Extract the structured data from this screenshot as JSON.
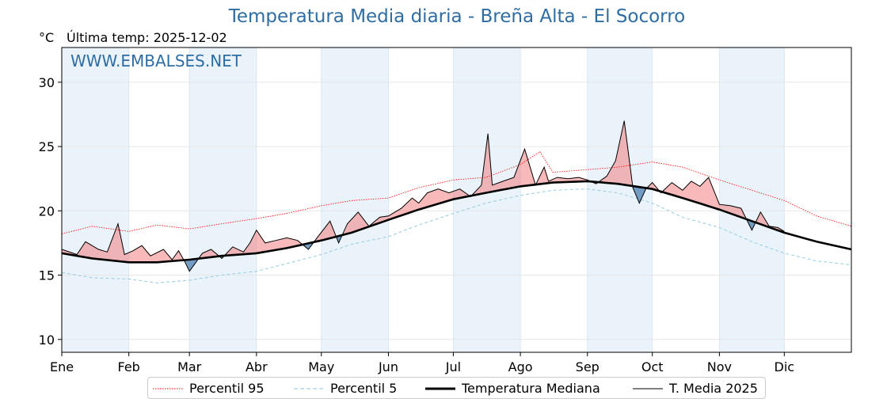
{
  "title": "Temperatura Media diaria - Breña Alta - El Socorro",
  "unit": "°C",
  "last_temp_text": "Última temp: 2025-12-02",
  "watermark": "WWW.EMBALSES.NET",
  "colors": {
    "p95": "#ff0000",
    "p5": "#9fd0e0",
    "median": "#000000",
    "current": "#000000",
    "fill_above": "#f08080",
    "fill_below": "#4a7fb0",
    "band": "#eaf2fa",
    "title": "#2e6da4"
  },
  "legend": [
    {
      "label": "Percentil 95",
      "style": "dotted-red"
    },
    {
      "label": "Percentil 5",
      "style": "dashed-lightblue"
    },
    {
      "label": "Temperatura Mediana",
      "style": "thick-black"
    },
    {
      "label": "T. Media 2025",
      "style": "thin-black"
    }
  ],
  "chart_data": {
    "type": "line",
    "title": "Temperatura Media diaria - Breña Alta - El Socorro",
    "ylabel": "°C",
    "ylim": [
      9,
      32.7
    ],
    "xlim": [
      1,
      366
    ],
    "yticks": [
      10,
      15,
      20,
      25,
      30
    ],
    "x_ticks": [
      {
        "label": "Ene",
        "day": 1
      },
      {
        "label": "Feb",
        "day": 32
      },
      {
        "label": "Mar",
        "day": 60
      },
      {
        "label": "Abr",
        "day": 91
      },
      {
        "label": "May",
        "day": 121
      },
      {
        "label": "Jun",
        "day": 152
      },
      {
        "label": "Jul",
        "day": 182
      },
      {
        "label": "Ago",
        "day": 213
      },
      {
        "label": "Sep",
        "day": 244
      },
      {
        "label": "Oct",
        "day": 274
      },
      {
        "label": "Nov",
        "day": 305
      },
      {
        "label": "Dic",
        "day": 335
      }
    ],
    "shaded_months": [
      "Ene",
      "Mar",
      "May",
      "Jul",
      "Sep",
      "Nov"
    ],
    "grid": true,
    "legend_position": "bottom",
    "series": [
      {
        "name": "Percentil 95",
        "x": [
          1,
          15,
          32,
          45,
          60,
          75,
          91,
          105,
          121,
          135,
          152,
          166,
          182,
          197,
          213,
          222,
          228,
          244,
          258,
          274,
          288,
          305,
          320,
          335,
          350,
          366
        ],
        "y": [
          18.2,
          18.8,
          18.4,
          18.9,
          18.6,
          19.0,
          19.4,
          19.8,
          20.4,
          20.8,
          21.0,
          21.8,
          22.4,
          22.6,
          23.6,
          24.6,
          23.0,
          23.2,
          23.4,
          23.8,
          23.4,
          22.4,
          21.6,
          20.8,
          19.6,
          18.8
        ]
      },
      {
        "name": "Percentil 5",
        "x": [
          1,
          15,
          32,
          45,
          60,
          75,
          91,
          105,
          121,
          135,
          152,
          166,
          182,
          197,
          213,
          228,
          244,
          258,
          274,
          288,
          305,
          320,
          335,
          350,
          366
        ],
        "y": [
          15.2,
          14.8,
          14.7,
          14.4,
          14.6,
          15.0,
          15.3,
          15.9,
          16.6,
          17.4,
          18.0,
          18.9,
          19.8,
          20.6,
          21.2,
          21.6,
          21.7,
          21.4,
          20.6,
          19.5,
          18.7,
          17.6,
          16.7,
          16.1,
          15.8
        ]
      },
      {
        "name": "Temperatura Mediana",
        "x": [
          1,
          15,
          32,
          45,
          60,
          75,
          91,
          105,
          121,
          135,
          152,
          166,
          182,
          197,
          213,
          228,
          244,
          258,
          274,
          288,
          305,
          320,
          335,
          350,
          366
        ],
        "y": [
          16.7,
          16.3,
          16.0,
          16.0,
          16.2,
          16.5,
          16.7,
          17.1,
          17.7,
          18.3,
          19.3,
          20.1,
          20.9,
          21.4,
          21.9,
          22.2,
          22.3,
          22.1,
          21.7,
          21.0,
          20.1,
          19.2,
          18.3,
          17.6,
          17.0
        ]
      },
      {
        "name": "T. Media 2025",
        "x": [
          1,
          8,
          12,
          18,
          22,
          27,
          30,
          34,
          38,
          42,
          48,
          52,
          55,
          58,
          60,
          63,
          66,
          70,
          75,
          80,
          85,
          88,
          91,
          95,
          100,
          105,
          110,
          115,
          119,
          125,
          129,
          133,
          138,
          143,
          148,
          152,
          158,
          163,
          166,
          170,
          175,
          180,
          185,
          190,
          195,
          198,
          200,
          205,
          210,
          215,
          220,
          224,
          226,
          230,
          235,
          240,
          244,
          248,
          253,
          257,
          261,
          265,
          268,
          271,
          274,
          278,
          283,
          288,
          292,
          296,
          300,
          305,
          310,
          315,
          320,
          324,
          328,
          332,
          335
        ],
        "y": [
          17.0,
          16.6,
          17.6,
          17.0,
          16.8,
          19.0,
          16.6,
          16.9,
          17.3,
          16.5,
          17.0,
          16.2,
          16.9,
          16.0,
          15.3,
          16.0,
          16.7,
          17.0,
          16.3,
          17.2,
          16.8,
          17.5,
          18.5,
          17.5,
          17.7,
          17.9,
          17.7,
          17.0,
          17.9,
          19.2,
          17.5,
          19.0,
          19.9,
          18.8,
          19.5,
          19.6,
          20.2,
          21.0,
          20.6,
          21.4,
          21.7,
          21.4,
          21.7,
          21.1,
          22.0,
          26.0,
          22.0,
          22.3,
          22.6,
          24.8,
          22.0,
          23.4,
          22.3,
          22.6,
          22.5,
          22.6,
          22.4,
          22.1,
          22.7,
          23.9,
          27.0,
          21.8,
          20.6,
          21.7,
          22.2,
          21.4,
          22.2,
          21.6,
          22.3,
          21.9,
          22.6,
          20.5,
          20.4,
          20.2,
          18.5,
          19.9,
          18.8,
          18.7,
          18.4
        ]
      }
    ]
  }
}
